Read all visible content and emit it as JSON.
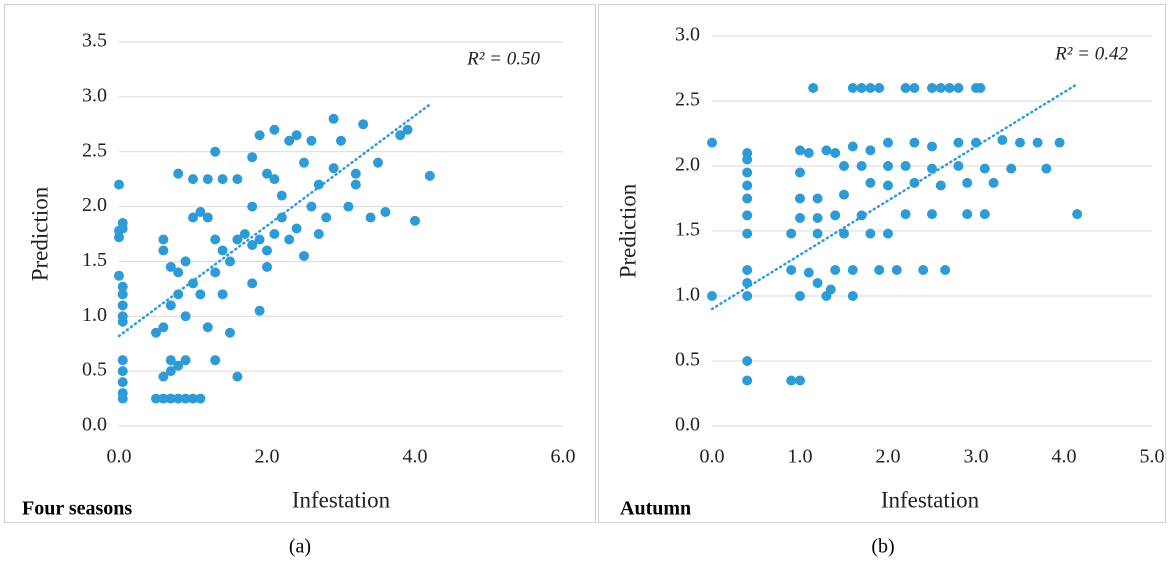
{
  "chart_data": [
    {
      "type": "scatter",
      "panel_label": "Four seasons",
      "caption": "(a)",
      "x_label": "Infestation",
      "y_label": "Prediction",
      "annotation": "R² = 0.50",
      "color": "#2e9bd6",
      "grid": true,
      "xlim": [
        0,
        6
      ],
      "ylim": [
        0,
        3.5
      ],
      "xticks": [
        {
          "value": 0,
          "label": "0.0"
        },
        {
          "value": 2,
          "label": "2.0"
        },
        {
          "value": 4,
          "label": "4.0"
        },
        {
          "value": 6,
          "label": "6.0"
        }
      ],
      "yticks": [
        {
          "value": 0,
          "label": "0.0"
        },
        {
          "value": 0.5,
          "label": "0.5"
        },
        {
          "value": 1,
          "label": "1.0"
        },
        {
          "value": 1.5,
          "label": "1.5"
        },
        {
          "value": 2,
          "label": "2.0"
        },
        {
          "value": 2.5,
          "label": "2.5"
        },
        {
          "value": 3,
          "label": "3.0"
        },
        {
          "value": 3.5,
          "label": "3.5"
        }
      ],
      "trendline": {
        "x": [
          0,
          4.2
        ],
        "y": [
          0.82,
          2.93
        ]
      },
      "x": [
        0,
        0,
        0,
        0.05,
        0.05,
        0,
        0.05,
        0.05,
        0.05,
        0.05,
        0.05,
        0.05,
        0.05,
        0.05,
        0.05,
        0.05,
        0.5,
        0.6,
        0.7,
        0.8,
        0.9,
        1.0,
        1.1,
        0.6,
        0.7,
        0.8,
        0.9,
        0.7,
        0.5,
        0.6,
        0.7,
        0.8,
        0.9,
        0.8,
        0.7,
        0.6,
        0.6,
        0.9,
        1.0,
        1.1,
        1.2,
        1.3,
        1.0,
        1.1,
        1.2,
        1.3,
        1.4,
        1.5,
        1.3,
        1.4,
        1.5,
        1.6,
        1.0,
        1.2,
        1.4,
        1.6,
        1.3,
        0.8,
        1.6,
        1.7,
        1.8,
        1.9,
        2.0,
        2.1,
        1.8,
        1.9,
        2.0,
        1.8,
        2.0,
        2.2,
        1.9,
        2.1,
        2.3,
        2.5,
        2.2,
        2.4,
        2.6,
        2.5,
        2.3,
        2.7,
        2.8,
        2.9,
        3.0,
        2.9,
        3.1,
        3.2,
        3.3,
        3.2,
        3.4,
        3.5,
        3.6,
        3.8,
        3.9,
        4.0,
        4.2,
        2.4,
        2.6,
        2.1,
        1.8,
        2.7
      ],
      "values": [
        2.2,
        1.78,
        1.72,
        1.8,
        1.85,
        1.37,
        1.27,
        1.2,
        1.1,
        1.0,
        0.95,
        0.6,
        0.5,
        0.4,
        0.3,
        0.25,
        0.25,
        0.25,
        0.25,
        0.25,
        0.25,
        0.25,
        0.25,
        0.45,
        0.5,
        0.55,
        0.6,
        0.6,
        0.85,
        0.9,
        1.1,
        1.2,
        1.0,
        1.4,
        1.45,
        1.6,
        1.7,
        1.5,
        1.3,
        1.2,
        0.9,
        0.6,
        1.9,
        1.95,
        1.9,
        1.7,
        1.6,
        1.5,
        1.4,
        1.2,
        0.85,
        0.45,
        2.25,
        2.25,
        2.25,
        2.25,
        2.5,
        2.3,
        1.7,
        1.75,
        1.65,
        1.7,
        1.6,
        1.75,
        1.3,
        1.05,
        1.45,
        2.0,
        2.3,
        2.1,
        2.65,
        2.7,
        2.6,
        2.4,
        1.9,
        1.8,
        2.0,
        1.55,
        1.7,
        2.2,
        1.9,
        2.35,
        2.6,
        2.8,
        2.0,
        2.3,
        2.75,
        2.2,
        1.9,
        2.4,
        1.95,
        2.65,
        2.7,
        1.87,
        2.28,
        2.65,
        2.6,
        2.25,
        2.45,
        1.75
      ]
    },
    {
      "type": "scatter",
      "panel_label": "Autumn",
      "caption": "(b)",
      "x_label": "Infestation",
      "y_label": "Prediction",
      "annotation": "R² = 0.42",
      "color": "#2e9bd6",
      "grid": true,
      "xlim": [
        0,
        5
      ],
      "ylim": [
        0,
        3
      ],
      "xticks": [
        {
          "value": 0,
          "label": "0.0"
        },
        {
          "value": 1,
          "label": "1.0"
        },
        {
          "value": 2,
          "label": "2.0"
        },
        {
          "value": 3,
          "label": "3.0"
        },
        {
          "value": 4,
          "label": "4.0"
        },
        {
          "value": 5,
          "label": "5.0"
        }
      ],
      "yticks": [
        {
          "value": 0,
          "label": "0.0"
        },
        {
          "value": 0.5,
          "label": "0.5"
        },
        {
          "value": 1,
          "label": "1.0"
        },
        {
          "value": 1.5,
          "label": "1.5"
        },
        {
          "value": 2,
          "label": "2.0"
        },
        {
          "value": 2.5,
          "label": "2.5"
        },
        {
          "value": 3,
          "label": "3.0"
        }
      ],
      "trendline": {
        "x": [
          0,
          4.15
        ],
        "y": [
          0.9,
          2.63
        ]
      },
      "x": [
        0,
        0,
        0.4,
        0.4,
        0.4,
        0.4,
        0.4,
        0.4,
        0.4,
        0.4,
        0.4,
        0.4,
        0.4,
        0.4,
        0.9,
        1.0,
        1.15,
        1.6,
        1.7,
        1.8,
        1.9,
        2.2,
        2.3,
        2.5,
        2.6,
        2.7,
        2.8,
        3.0,
        3.05,
        1.0,
        1.1,
        1.3,
        1.4,
        1.6,
        1.8,
        2.0,
        2.3,
        2.5,
        2.8,
        3.0,
        3.3,
        3.5,
        3.7,
        3.95,
        1.0,
        1.5,
        1.7,
        2.0,
        2.2,
        2.5,
        2.8,
        3.1,
        3.4,
        3.8,
        1.0,
        1.2,
        1.5,
        1.8,
        2.0,
        2.3,
        2.6,
        2.9,
        3.2,
        1.0,
        1.2,
        1.4,
        1.7,
        2.2,
        2.5,
        2.9,
        3.1,
        4.15,
        1.2,
        1.5,
        1.8,
        2.0,
        0.9,
        1.1,
        1.4,
        1.6,
        1.9,
        2.1,
        2.4,
        2.65,
        1.0,
        1.2,
        1.35,
        1.6,
        1.3,
        0.9
      ],
      "values": [
        2.18,
        1.0,
        2.1,
        2.05,
        1.95,
        1.85,
        1.75,
        1.62,
        1.48,
        1.2,
        1.1,
        1.0,
        0.5,
        0.35,
        0.35,
        0.35,
        2.6,
        2.6,
        2.6,
        2.6,
        2.6,
        2.6,
        2.6,
        2.6,
        2.6,
        2.6,
        2.6,
        2.6,
        2.6,
        2.12,
        2.1,
        2.12,
        2.1,
        2.15,
        2.12,
        2.18,
        2.18,
        2.15,
        2.18,
        2.18,
        2.2,
        2.18,
        2.18,
        2.18,
        1.95,
        2.0,
        2.0,
        2.0,
        2.0,
        1.98,
        2.0,
        1.98,
        1.98,
        1.98,
        1.75,
        1.75,
        1.78,
        1.87,
        1.85,
        1.87,
        1.85,
        1.87,
        1.87,
        1.6,
        1.6,
        1.62,
        1.62,
        1.63,
        1.63,
        1.63,
        1.63,
        1.63,
        1.48,
        1.48,
        1.48,
        1.48,
        1.2,
        1.18,
        1.2,
        1.2,
        1.2,
        1.2,
        1.2,
        1.2,
        1.0,
        1.1,
        1.05,
        1.0,
        1.0,
        1.48
      ]
    }
  ]
}
